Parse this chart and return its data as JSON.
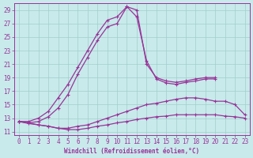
{
  "xlabel": "Windchill (Refroidissement éolien,°C)",
  "xlim": [
    -0.5,
    23.5
  ],
  "ylim": [
    10.5,
    30.0
  ],
  "xticks": [
    0,
    1,
    2,
    3,
    4,
    5,
    6,
    7,
    8,
    9,
    10,
    11,
    12,
    13,
    14,
    15,
    16,
    17,
    18,
    19,
    20,
    21,
    22,
    23
  ],
  "yticks": [
    11,
    13,
    15,
    17,
    19,
    21,
    23,
    25,
    27,
    29
  ],
  "background_color": "#c8eaeb",
  "grid_color": "#a0ceca",
  "line_color": "#993399",
  "curves": [
    {
      "x": [
        0,
        1,
        2,
        3,
        4,
        5,
        6,
        7,
        8,
        9,
        10,
        11,
        12,
        13,
        14,
        15,
        16,
        17,
        18,
        19,
        20
      ],
      "y": [
        12.5,
        12.5,
        13.0,
        14.0,
        16.0,
        18.0,
        20.5,
        23.0,
        25.5,
        27.5,
        28.0,
        29.5,
        29.0,
        21.0,
        19.0,
        18.5,
        18.3,
        18.5,
        18.8,
        19.0,
        19.0
      ]
    },
    {
      "x": [
        0,
        1,
        2,
        3,
        4,
        5,
        6,
        7,
        8,
        9,
        10,
        11,
        12,
        13,
        14,
        15,
        16,
        17,
        18,
        19,
        20
      ],
      "y": [
        12.5,
        12.3,
        12.5,
        13.2,
        14.5,
        16.5,
        19.5,
        22.0,
        24.5,
        26.5,
        27.0,
        29.5,
        28.0,
        21.5,
        18.8,
        18.2,
        18.0,
        18.3,
        18.5,
        18.8,
        18.8
      ]
    },
    {
      "x": [
        0,
        1,
        2,
        3,
        4,
        5,
        6,
        7,
        8,
        9,
        10,
        11,
        12,
        13,
        14,
        15,
        16,
        17,
        18,
        19,
        20,
        21,
        22,
        23
      ],
      "y": [
        12.5,
        12.3,
        12.0,
        11.8,
        11.5,
        11.5,
        11.8,
        12.0,
        12.5,
        13.0,
        13.5,
        14.0,
        14.5,
        15.0,
        15.2,
        15.5,
        15.8,
        16.0,
        16.0,
        15.8,
        15.5,
        15.5,
        15.0,
        13.5
      ]
    },
    {
      "x": [
        0,
        1,
        2,
        3,
        4,
        5,
        6,
        7,
        8,
        9,
        10,
        11,
        12,
        13,
        14,
        15,
        16,
        17,
        18,
        19,
        20,
        21,
        22,
        23
      ],
      "y": [
        12.5,
        12.2,
        12.0,
        11.8,
        11.5,
        11.3,
        11.3,
        11.5,
        11.8,
        12.0,
        12.3,
        12.5,
        12.8,
        13.0,
        13.2,
        13.3,
        13.5,
        13.5,
        13.5,
        13.5,
        13.5,
        13.3,
        13.2,
        13.0
      ]
    }
  ]
}
